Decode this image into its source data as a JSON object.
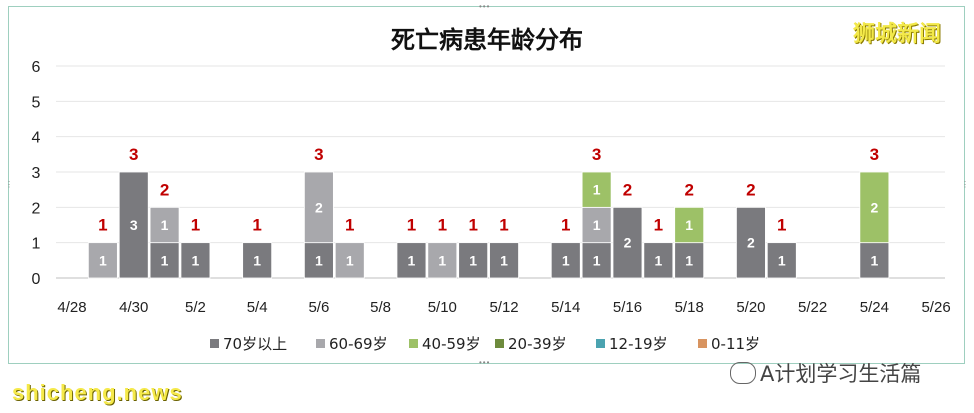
{
  "chart_data": {
    "type": "bar",
    "title": "死亡病患年龄分布",
    "ylim": [
      0,
      6
    ],
    "yticks": [
      0,
      1,
      2,
      3,
      4,
      5,
      6
    ],
    "grid": true,
    "legend_position": "bottom",
    "categories": [
      "4/28",
      "4/29",
      "4/30",
      "5/1",
      "5/2",
      "5/3",
      "5/4",
      "5/5",
      "5/6",
      "5/7",
      "5/8",
      "5/9",
      "5/10",
      "5/11",
      "5/12",
      "5/13",
      "5/14",
      "5/15",
      "5/16",
      "5/17",
      "5/18",
      "5/19",
      "5/20",
      "5/21",
      "5/22",
      "5/23",
      "5/24",
      "5/25",
      "5/26"
    ],
    "x_tick_labels": [
      "4/28",
      "4/30",
      "5/2",
      "5/4",
      "5/6",
      "5/8",
      "5/10",
      "5/12",
      "5/14",
      "5/16",
      "5/18",
      "5/20",
      "5/22",
      "5/24",
      "5/26"
    ],
    "series": [
      {
        "name": "70岁以上",
        "color": "#7a7a7e",
        "values": [
          0,
          0,
          3,
          1,
          1,
          0,
          1,
          0,
          1,
          0,
          0,
          1,
          0,
          1,
          1,
          0,
          1,
          1,
          2,
          1,
          1,
          0,
          2,
          1,
          0,
          0,
          1,
          0,
          0
        ]
      },
      {
        "name": "60-69岁",
        "color": "#a8a8ac",
        "values": [
          0,
          1,
          0,
          1,
          0,
          0,
          0,
          0,
          2,
          1,
          0,
          0,
          1,
          0,
          0,
          0,
          0,
          1,
          0,
          0,
          0,
          0,
          0,
          0,
          0,
          0,
          0,
          0,
          0
        ]
      },
      {
        "name": "40-59岁",
        "color": "#9dc167",
        "values": [
          0,
          0,
          0,
          0,
          0,
          0,
          0,
          0,
          0,
          0,
          0,
          0,
          0,
          0,
          0,
          0,
          0,
          1,
          0,
          0,
          1,
          0,
          0,
          0,
          0,
          0,
          2,
          0,
          0
        ]
      },
      {
        "name": "20-39岁",
        "color": "#6e8b3d",
        "values": [
          0,
          0,
          0,
          0,
          0,
          0,
          0,
          0,
          0,
          0,
          0,
          0,
          0,
          0,
          0,
          0,
          0,
          0,
          0,
          0,
          0,
          0,
          0,
          0,
          0,
          0,
          0,
          0,
          0
        ]
      },
      {
        "name": "12-19岁",
        "color": "#4ba3b0",
        "values": [
          0,
          0,
          0,
          0,
          0,
          0,
          0,
          0,
          0,
          0,
          0,
          0,
          0,
          0,
          0,
          0,
          0,
          0,
          0,
          0,
          0,
          0,
          0,
          0,
          0,
          0,
          0,
          0,
          0
        ]
      },
      {
        "name": "0-11岁",
        "color": "#d89460",
        "values": [
          0,
          0,
          0,
          0,
          0,
          0,
          0,
          0,
          0,
          0,
          0,
          0,
          0,
          0,
          0,
          0,
          0,
          0,
          0,
          0,
          0,
          0,
          0,
          0,
          0,
          0,
          0,
          0,
          0
        ]
      }
    ],
    "total_label_color": "#c00000"
  },
  "brand": "狮城新闻",
  "footer_left": "shicheng.news",
  "footer_right": "A计划学习生活篇",
  "footer_icon": "wechat-icon"
}
